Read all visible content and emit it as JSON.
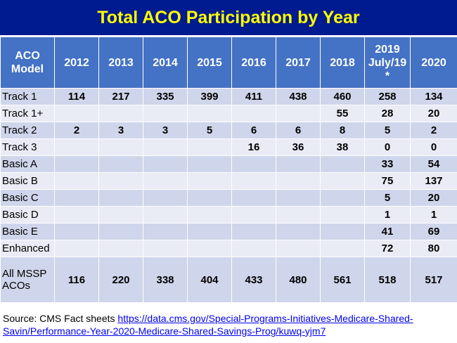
{
  "title": "Total ACO Participation by Year",
  "header": [
    "ACO\nModel",
    "2012",
    "2013",
    "2014",
    "2015",
    "2016",
    "2017",
    "2018",
    "2019\nJuly/19\n*",
    "2020"
  ],
  "chart_data": {
    "type": "table",
    "title": "Total ACO Participation by Year",
    "columns": [
      "ACO Model",
      "2012",
      "2013",
      "2014",
      "2015",
      "2016",
      "2017",
      "2018",
      "2019 July/19 *",
      "2020"
    ],
    "rows": [
      [
        "Track 1",
        "114",
        "217",
        "335",
        "399",
        "411",
        "438",
        "460",
        "258",
        "134"
      ],
      [
        "Track 1+",
        "",
        "",
        "",
        "",
        "",
        "",
        "55",
        "28",
        "20"
      ],
      [
        "Track 2",
        "2",
        "3",
        "3",
        "5",
        "6",
        "6",
        "8",
        "5",
        "2"
      ],
      [
        "Track 3",
        "",
        "",
        "",
        "",
        "16",
        "36",
        "38",
        "0",
        "0"
      ],
      [
        "Basic A",
        "",
        "",
        "",
        "",
        "",
        "",
        "",
        "33",
        "54"
      ],
      [
        "Basic B",
        "",
        "",
        "",
        "",
        "",
        "",
        "",
        "75",
        "137"
      ],
      [
        "Basic C",
        "",
        "",
        "",
        "",
        "",
        "",
        "",
        "5",
        "20"
      ],
      [
        "Basic D",
        "",
        "",
        "",
        "",
        "",
        "",
        "",
        "1",
        "1"
      ],
      [
        "Basic E",
        "",
        "",
        "",
        "",
        "",
        "",
        "",
        "41",
        "69"
      ],
      [
        "Enhanced",
        "",
        "",
        "",
        "",
        "",
        "",
        "",
        "72",
        "80"
      ],
      [
        "All MSSP\nACOs",
        "116",
        "220",
        "338",
        "404",
        "433",
        "480",
        "561",
        "518",
        "517"
      ]
    ]
  },
  "source": {
    "prefix": "Source: CMS Fact sheets ",
    "link": "https://data.cms.gov/Special-Programs-Initiatives-Medicare-Shared-Savin/Performance-Year-2020-Medicare-Shared-Savings-Prog/kuwq-yjm7"
  },
  "colors": {
    "title_bg": "#001a8f",
    "title_text": "#ffff00",
    "header_bg": "#4472c4",
    "row_odd": "#cfd5ea",
    "row_even": "#e9ebf5",
    "link": "#0000ee"
  }
}
